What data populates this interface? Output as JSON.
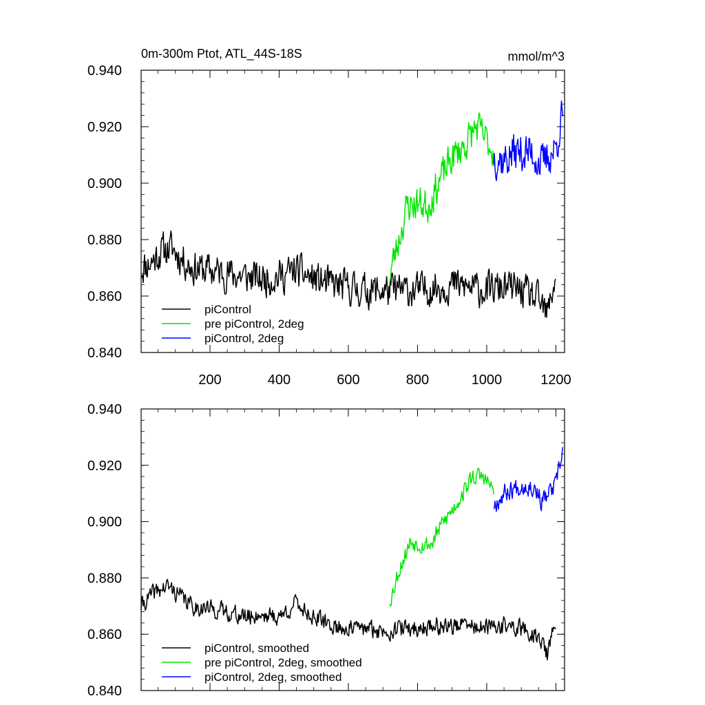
{
  "chart_data": [
    {
      "type": "line",
      "title": "0m-300m Ptot, ATL_44S-18S",
      "units": "mmol/m^3",
      "xlabel": "",
      "ylabel": "",
      "xlim": [
        1,
        1225
      ],
      "ylim": [
        0.84,
        0.94
      ],
      "x_ticks": [
        200,
        400,
        600,
        800,
        1000,
        1200
      ],
      "x_tick_labels": [
        "200",
        "400",
        "600",
        "800",
        "1000",
        "1200"
      ],
      "y_ticks": [
        0.84,
        0.86,
        0.88,
        0.9,
        0.92,
        0.94
      ],
      "y_tick_labels": [
        "0.840",
        "0.860",
        "0.880",
        "0.900",
        "0.920",
        "0.940"
      ],
      "grid": false,
      "legend_position": "bottom-left",
      "series": [
        {
          "name": "piControl",
          "color": "#000000",
          "x_start": 1,
          "x_end": 1200,
          "anchors": [
            [
              1,
              0.87
            ],
            [
              30,
              0.872
            ],
            [
              60,
              0.876
            ],
            [
              90,
              0.877
            ],
            [
              120,
              0.873
            ],
            [
              150,
              0.87
            ],
            [
              200,
              0.869
            ],
            [
              250,
              0.868
            ],
            [
              300,
              0.867
            ],
            [
              350,
              0.866
            ],
            [
              400,
              0.867
            ],
            [
              450,
              0.869
            ],
            [
              500,
              0.866
            ],
            [
              550,
              0.864
            ],
            [
              600,
              0.863
            ],
            [
              650,
              0.862
            ],
            [
              700,
              0.862
            ],
            [
              750,
              0.862
            ],
            [
              800,
              0.862
            ],
            [
              850,
              0.863
            ],
            [
              900,
              0.864
            ],
            [
              950,
              0.863
            ],
            [
              1000,
              0.862
            ],
            [
              1050,
              0.863
            ],
            [
              1100,
              0.862
            ],
            [
              1150,
              0.858
            ],
            [
              1175,
              0.853
            ],
            [
              1200,
              0.868
            ]
          ],
          "noise": 0.0055,
          "seed": 11
        },
        {
          "name": "pre piControl, 2deg",
          "color": "#00e600",
          "x_start": 720,
          "x_end": 1020,
          "anchors": [
            [
              720,
              0.868
            ],
            [
              750,
              0.882
            ],
            [
              770,
              0.892
            ],
            [
              800,
              0.893
            ],
            [
              830,
              0.892
            ],
            [
              860,
              0.9
            ],
            [
              900,
              0.909
            ],
            [
              940,
              0.914
            ],
            [
              970,
              0.92
            ],
            [
              1000,
              0.915
            ],
            [
              1020,
              0.911
            ]
          ],
          "noise": 0.0055,
          "seed": 23
        },
        {
          "name": "piControl, 2deg",
          "color": "#0000ff",
          "x_start": 1020,
          "x_end": 1220,
          "anchors": [
            [
              1020,
              0.91
            ],
            [
              1050,
              0.908
            ],
            [
              1080,
              0.911
            ],
            [
              1110,
              0.911
            ],
            [
              1140,
              0.91
            ],
            [
              1160,
              0.906
            ],
            [
              1180,
              0.91
            ],
            [
              1200,
              0.912
            ],
            [
              1210,
              0.92
            ],
            [
              1220,
              0.924
            ]
          ],
          "noise": 0.0065,
          "seed": 37
        }
      ]
    },
    {
      "type": "line",
      "title": "",
      "units": "",
      "xlabel": "",
      "ylabel": "",
      "xlim": [
        1,
        1225
      ],
      "ylim": [
        0.84,
        0.94
      ],
      "x_ticks": [
        200,
        400,
        600,
        800,
        1000,
        1200
      ],
      "x_tick_labels": [],
      "y_ticks": [
        0.84,
        0.86,
        0.88,
        0.9,
        0.92,
        0.94
      ],
      "y_tick_labels": [
        "0.840",
        "0.860",
        "0.880",
        "0.900",
        "0.920",
        "0.940"
      ],
      "grid": false,
      "legend_position": "bottom-left",
      "series": [
        {
          "name": "piControl, smoothed",
          "color": "#000000",
          "x_start": 1,
          "x_end": 1200,
          "anchors": [
            [
              1,
              0.87
            ],
            [
              40,
              0.875
            ],
            [
              80,
              0.877
            ],
            [
              110,
              0.874
            ],
            [
              150,
              0.87
            ],
            [
              200,
              0.869
            ],
            [
              250,
              0.868
            ],
            [
              300,
              0.866
            ],
            [
              350,
              0.867
            ],
            [
              400,
              0.866
            ],
            [
              450,
              0.871
            ],
            [
              500,
              0.866
            ],
            [
              550,
              0.863
            ],
            [
              600,
              0.862
            ],
            [
              650,
              0.862
            ],
            [
              700,
              0.861
            ],
            [
              750,
              0.862
            ],
            [
              800,
              0.862
            ],
            [
              850,
              0.863
            ],
            [
              900,
              0.863
            ],
            [
              950,
              0.863
            ],
            [
              1000,
              0.862
            ],
            [
              1050,
              0.863
            ],
            [
              1100,
              0.862
            ],
            [
              1150,
              0.859
            ],
            [
              1175,
              0.853
            ],
            [
              1200,
              0.864
            ]
          ],
          "noise": 0.0028,
          "seed": 41
        },
        {
          "name": "pre piControl, 2deg, smoothed",
          "color": "#00e600",
          "x_start": 720,
          "x_end": 1020,
          "anchors": [
            [
              720,
              0.872
            ],
            [
              750,
              0.884
            ],
            [
              780,
              0.893
            ],
            [
              810,
              0.892
            ],
            [
              840,
              0.892
            ],
            [
              870,
              0.899
            ],
            [
              900,
              0.904
            ],
            [
              930,
              0.91
            ],
            [
              960,
              0.916
            ],
            [
              990,
              0.916
            ],
            [
              1020,
              0.911
            ]
          ],
          "noise": 0.0028,
          "seed": 53
        },
        {
          "name": "piControl, 2deg, smoothed",
          "color": "#0000ff",
          "x_start": 1020,
          "x_end": 1220,
          "anchors": [
            [
              1020,
              0.906
            ],
            [
              1050,
              0.91
            ],
            [
              1080,
              0.912
            ],
            [
              1110,
              0.913
            ],
            [
              1140,
              0.912
            ],
            [
              1160,
              0.907
            ],
            [
              1180,
              0.91
            ],
            [
              1200,
              0.913
            ],
            [
              1210,
              0.919
            ],
            [
              1220,
              0.925
            ]
          ],
          "noise": 0.003,
          "seed": 67
        }
      ]
    }
  ]
}
